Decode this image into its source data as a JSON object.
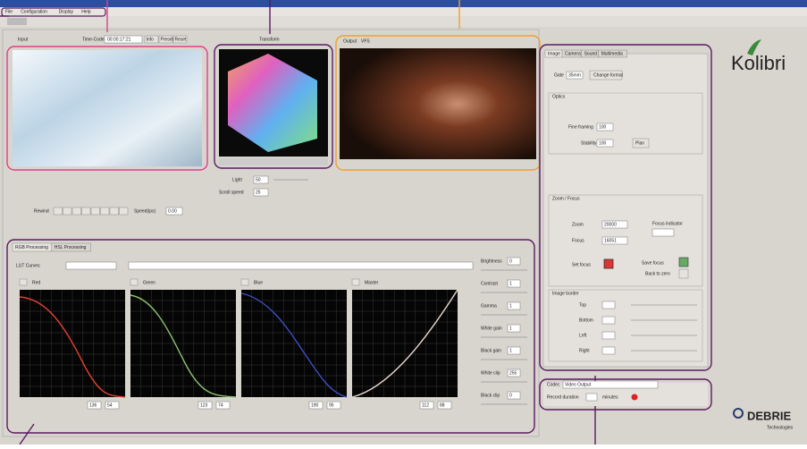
{
  "menu": [
    "File",
    "Configuration",
    "Display",
    "Help"
  ],
  "input_panel": {
    "title": "Input",
    "timecode_label": "Time-Code",
    "timecode": "00:00:17:21",
    "buttons": [
      "Info",
      "Preset",
      "Reset"
    ]
  },
  "transform_panel": {
    "title": "Transform",
    "light_label": "Light",
    "light_value": "50",
    "speed_label": "Scroll speed",
    "speed_value": "25"
  },
  "output_panel": {
    "title": "Output",
    "tab": "VFS"
  },
  "transport": {
    "label": "Rewind",
    "speed_label": "Speed(ips)",
    "speed_value": "0.00"
  },
  "processing": {
    "tabs": [
      "RGB Processing",
      "HSL Processing"
    ],
    "lut_label": "LUT Curves",
    "channels": [
      {
        "name": "Red",
        "values": [
          "136",
          "54"
        ]
      },
      {
        "name": "Green",
        "values": [
          "123",
          "74"
        ]
      },
      {
        "name": "Blue",
        "values": [
          "190",
          "95"
        ]
      },
      {
        "name": "Master",
        "values": [
          "112",
          "88"
        ]
      }
    ],
    "adjustments": [
      {
        "name": "Brightness",
        "value": "0"
      },
      {
        "name": "Contrast",
        "value": "1"
      },
      {
        "name": "Gamma",
        "value": "1"
      },
      {
        "name": "White gain",
        "value": "1"
      },
      {
        "name": "Black gain",
        "value": "1"
      },
      {
        "name": "White clip",
        "value": "255"
      },
      {
        "name": "Black clip",
        "value": "0"
      }
    ]
  },
  "settings": {
    "tabs": [
      "Image",
      "Camera",
      "Sound",
      "Multimedia"
    ],
    "gate_label": "Gate",
    "gate_value": "35mm",
    "change_format": "Change format",
    "optics": "Optics",
    "fine_framing": "Fine framing",
    "fine_framing_value": "100",
    "stability": "Stability",
    "stability_value": "100",
    "stability_button": "Plan",
    "zoom_focus": "Zoom / Focus",
    "zoom": "Zoom",
    "zoom_value": "20000",
    "focus": "Focus",
    "focus_value": "16051",
    "focus_indicator": "Focus indicator",
    "set_focus": "Set focus",
    "save_focus": "Save focus",
    "back_to_zero": "Back to zero",
    "image_border": "Image border",
    "borders": [
      "Top",
      "Bottom",
      "Left",
      "Right"
    ]
  },
  "record": {
    "codec_label": "Codec",
    "codec": "Video Output",
    "duration_label": "Record duration",
    "minutes": "minutes"
  },
  "brand": {
    "product": "Kolibri",
    "company": "DEBRIE",
    "tagline": "Technologies"
  }
}
